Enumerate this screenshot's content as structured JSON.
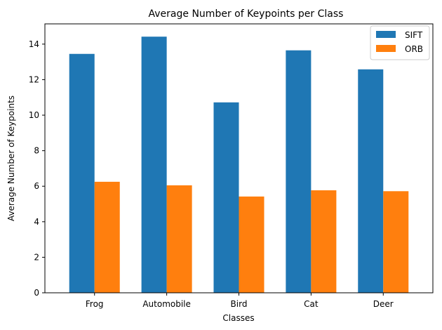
{
  "chart_data": {
    "type": "bar",
    "title": "Average Number of Keypoints per Class",
    "xlabel": "Classes",
    "ylabel": "Average Number of Keypoints",
    "categories": [
      "Frog",
      "Automobile",
      "Bird",
      "Cat",
      "Deer"
    ],
    "series": [
      {
        "name": "SIFT",
        "color": "#1f77b4",
        "values": [
          13.45,
          14.42,
          10.72,
          13.65,
          12.58
        ]
      },
      {
        "name": "ORB",
        "color": "#ff7f0e",
        "values": [
          6.25,
          6.05,
          5.42,
          5.77,
          5.72
        ]
      }
    ],
    "ylim": [
      0,
      15.14
    ],
    "yticks": [
      0,
      2,
      4,
      6,
      8,
      10,
      12,
      14
    ],
    "grid": false,
    "legend_position": "top-right"
  }
}
